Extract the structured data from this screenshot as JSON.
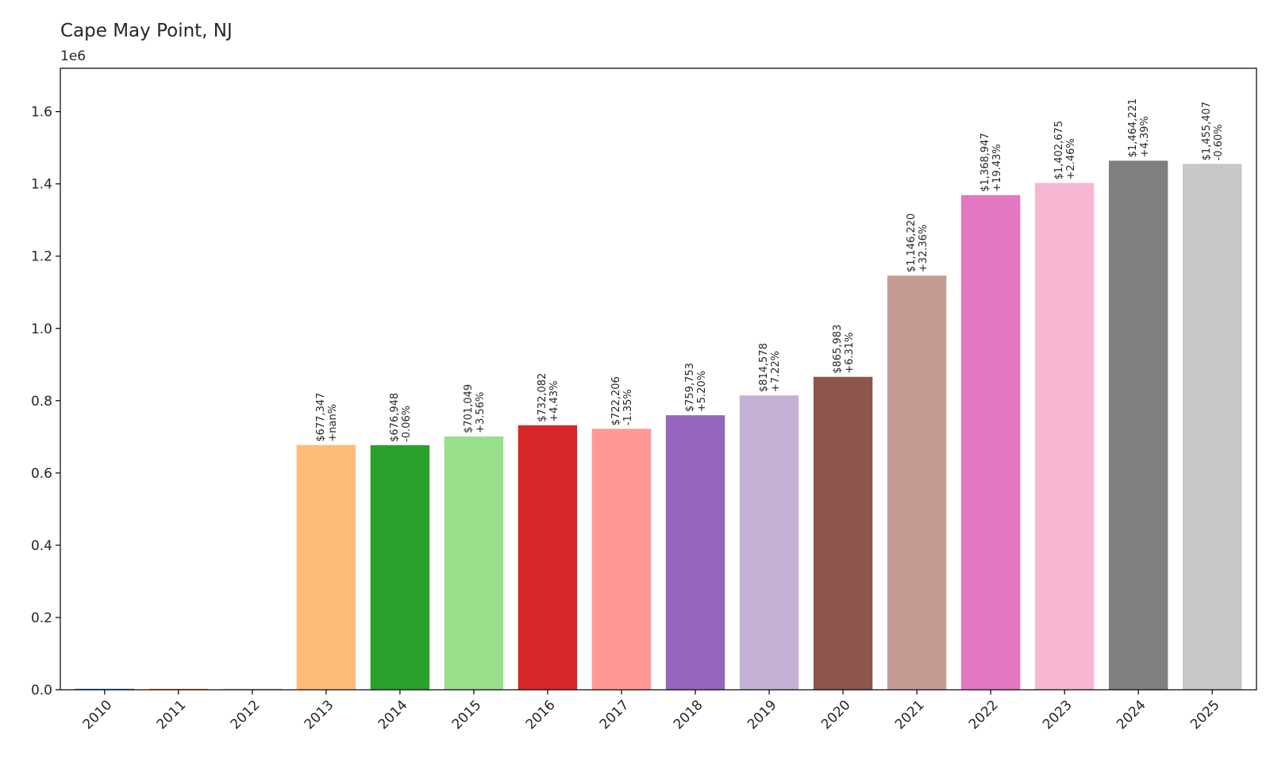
{
  "chart_data": {
    "type": "bar",
    "title": "Cape May Point, NJ",
    "y_offset_label": "1e6",
    "xlabel": "",
    "ylabel": "",
    "ylim": [
      0,
      1720000
    ],
    "grid": false,
    "legend": "none",
    "y_ticks": [
      {
        "value": 0,
        "label": "0.0"
      },
      {
        "value": 200000,
        "label": "0.2"
      },
      {
        "value": 400000,
        "label": "0.4"
      },
      {
        "value": 600000,
        "label": "0.6"
      },
      {
        "value": 800000,
        "label": "0.8"
      },
      {
        "value": 1000000,
        "label": "1.0"
      },
      {
        "value": 1200000,
        "label": "1.2"
      },
      {
        "value": 1400000,
        "label": "1.4"
      },
      {
        "value": 1600000,
        "label": "1.6"
      }
    ],
    "categories": [
      "2010",
      "2011",
      "2012",
      "2013",
      "2014",
      "2015",
      "2016",
      "2017",
      "2018",
      "2019",
      "2020",
      "2021",
      "2022",
      "2023",
      "2024",
      "2025"
    ],
    "bars": [
      {
        "year": "2010",
        "value": 0,
        "color": "#1f77b4",
        "price_label": "",
        "change_label": ""
      },
      {
        "year": "2011",
        "value": 0,
        "color": "#ff7f0e",
        "price_label": "",
        "change_label": ""
      },
      {
        "year": "2012",
        "value": 0,
        "color": "#aec7e8",
        "price_label": "",
        "change_label": ""
      },
      {
        "year": "2013",
        "value": 677347,
        "color": "#ffbb78",
        "price_label": "$677,347",
        "change_label": "+nan%"
      },
      {
        "year": "2014",
        "value": 676948,
        "color": "#2ca02c",
        "price_label": "$676,948",
        "change_label": "-0.06%"
      },
      {
        "year": "2015",
        "value": 701049,
        "color": "#98df8a",
        "price_label": "$701,049",
        "change_label": "+3.56%"
      },
      {
        "year": "2016",
        "value": 732082,
        "color": "#d62728",
        "price_label": "$732,082",
        "change_label": "+4.43%"
      },
      {
        "year": "2017",
        "value": 722206,
        "color": "#ff9896",
        "price_label": "$722,206",
        "change_label": "-1.35%"
      },
      {
        "year": "2018",
        "value": 759753,
        "color": "#9467bd",
        "price_label": "$759,753",
        "change_label": "+5.20%"
      },
      {
        "year": "2019",
        "value": 814578,
        "color": "#c5b0d5",
        "price_label": "$814,578",
        "change_label": "+7.22%"
      },
      {
        "year": "2020",
        "value": 865983,
        "color": "#8c564b",
        "price_label": "$865,983",
        "change_label": "+6.31%"
      },
      {
        "year": "2021",
        "value": 1146220,
        "color": "#c49c94",
        "price_label": "$1,146,220",
        "change_label": "+32.36%"
      },
      {
        "year": "2022",
        "value": 1368947,
        "color": "#e377c2",
        "price_label": "$1,368,947",
        "change_label": "+19.43%"
      },
      {
        "year": "2023",
        "value": 1402675,
        "color": "#f7b6d2",
        "price_label": "$1,402,675",
        "change_label": "+2.46%"
      },
      {
        "year": "2024",
        "value": 1464221,
        "color": "#7f7f7f",
        "price_label": "$1,464,221",
        "change_label": "+4.39%"
      },
      {
        "year": "2025",
        "value": 1455407,
        "color": "#c7c7c7",
        "price_label": "$1,455,407",
        "change_label": "-0.60%"
      }
    ]
  }
}
